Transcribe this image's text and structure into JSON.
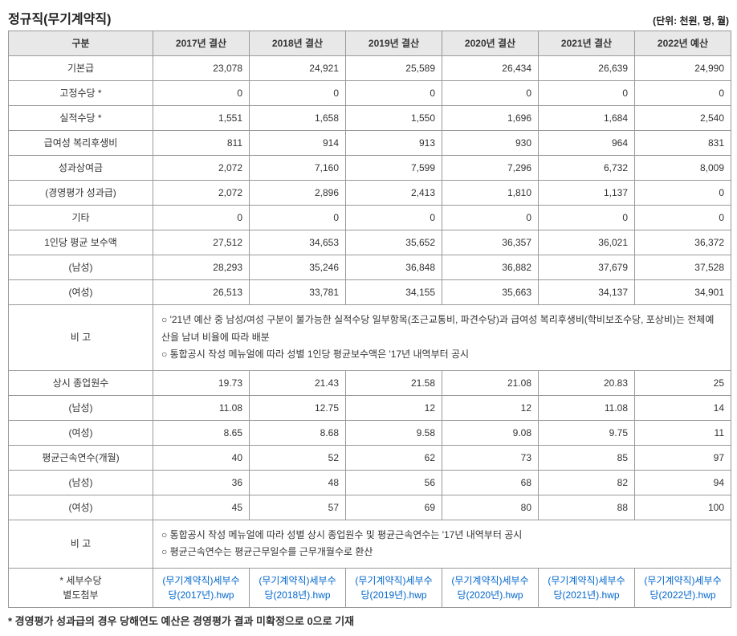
{
  "title": "정규직(무기계약직)",
  "unit": "(단위: 천원, 명, 월)",
  "columns": [
    "구분",
    "2017년 결산",
    "2018년 결산",
    "2019년 결산",
    "2020년 결산",
    "2021년 결산",
    "2022년 예산"
  ],
  "rows": [
    {
      "label": "기본급",
      "values": [
        "23,078",
        "24,921",
        "25,589",
        "26,434",
        "26,639",
        "24,990"
      ]
    },
    {
      "label": "고정수당 *",
      "values": [
        "0",
        "0",
        "0",
        "0",
        "0",
        "0"
      ]
    },
    {
      "label": "실적수당 *",
      "values": [
        "1,551",
        "1,658",
        "1,550",
        "1,696",
        "1,684",
        "2,540"
      ]
    },
    {
      "label": "급여성 복리후생비",
      "values": [
        "811",
        "914",
        "913",
        "930",
        "964",
        "831"
      ]
    },
    {
      "label": "성과상여금",
      "values": [
        "2,072",
        "7,160",
        "7,599",
        "7,296",
        "6,732",
        "8,009"
      ]
    },
    {
      "label": "(경영평가 성과급)",
      "values": [
        "2,072",
        "2,896",
        "2,413",
        "1,810",
        "1,137",
        "0"
      ]
    },
    {
      "label": "기타",
      "values": [
        "0",
        "0",
        "0",
        "0",
        "0",
        "0"
      ]
    },
    {
      "label": "1인당 평균 보수액",
      "values": [
        "27,512",
        "34,653",
        "35,652",
        "36,357",
        "36,021",
        "36,372"
      ]
    },
    {
      "label": "(남성)",
      "values": [
        "28,293",
        "35,246",
        "36,848",
        "36,882",
        "37,679",
        "37,528"
      ]
    },
    {
      "label": "(여성)",
      "values": [
        "26,513",
        "33,781",
        "34,155",
        "35,663",
        "34,137",
        "34,901"
      ]
    }
  ],
  "note1": "○ '21년 예산 중 남성/여성 구분이 불가능한 실적수당 일부항목(조근교통비, 파견수당)과 급여성 복리후생비(학비보조수당, 포상비)는 전체예산을 남녀 비율에 따라 배분\n○ 통합공시 작성 메뉴얼에 따라 성별 1인당 평균보수액은 '17년 내역부터 공시",
  "rows2": [
    {
      "label": "상시 종업원수",
      "values": [
        "19.73",
        "21.43",
        "21.58",
        "21.08",
        "20.83",
        "25"
      ]
    },
    {
      "label": "(남성)",
      "values": [
        "11.08",
        "12.75",
        "12",
        "12",
        "11.08",
        "14"
      ]
    },
    {
      "label": "(여성)",
      "values": [
        "8.65",
        "8.68",
        "9.58",
        "9.08",
        "9.75",
        "11"
      ]
    },
    {
      "label": "평균근속연수(개월)",
      "values": [
        "40",
        "52",
        "62",
        "73",
        "85",
        "97"
      ]
    },
    {
      "label": "(남성)",
      "values": [
        "36",
        "48",
        "56",
        "68",
        "82",
        "94"
      ]
    },
    {
      "label": "(여성)",
      "values": [
        "45",
        "57",
        "69",
        "80",
        "88",
        "100"
      ]
    }
  ],
  "note2": "○ 통합공시 작성 메뉴얼에 따라 성별 상시 종업원수 및 평균근속연수는 '17년 내역부터 공시\n○ 평균근속연수는 평균근무일수를 근무개월수로 환산",
  "attach_label": "* 세부수당\n별도첨부",
  "attachments": [
    "(무기계약직)세부수당(2017년).hwp",
    "(무기계약직)세부수당(2018년).hwp",
    "(무기계약직)세부수당(2019년).hwp",
    "(무기계약직)세부수당(2020년).hwp",
    "(무기계약직)세부수당(2021년).hwp",
    "(무기계약직)세부수당(2022년).hwp"
  ],
  "footnote": "* 경영평가 성과급의 경우 당해연도 예산은 경영평가 결과 미확정으로 0으로 기재"
}
